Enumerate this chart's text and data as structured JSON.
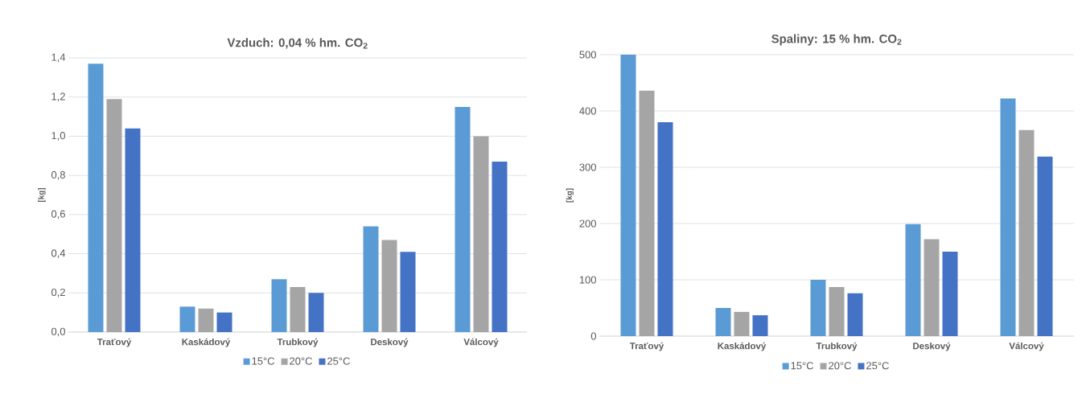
{
  "chart_data": [
    {
      "type": "bar",
      "title": "Vzduch: 0,04 % hm. CO$_{2}$",
      "ylabel": "[kg]",
      "categories": [
        "Traťový",
        "Kaskádový",
        "Trubkový",
        "Deskový",
        "Válcový"
      ],
      "series": [
        {
          "name": "15°C",
          "color": "#5b9bd5",
          "values": [
            1.37,
            0.13,
            0.27,
            0.54,
            1.15
          ]
        },
        {
          "name": "20°C",
          "color": "#a5a5a5",
          "values": [
            1.19,
            0.12,
            0.23,
            0.47,
            1.0
          ]
        },
        {
          "name": "25°C",
          "color": "#4472c4",
          "values": [
            1.04,
            0.1,
            0.2,
            0.41,
            0.87
          ]
        }
      ],
      "ylim": [
        0,
        1.4
      ],
      "yticks": [
        {
          "value": 0,
          "label": "0,0"
        },
        {
          "value": 0.2,
          "label": "0,2"
        },
        {
          "value": 0.4,
          "label": "0,4"
        },
        {
          "value": 0.6,
          "label": "0,6"
        },
        {
          "value": 0.8,
          "label": "0,8"
        },
        {
          "value": 1.0,
          "label": "1,0"
        },
        {
          "value": 1.2,
          "label": "1,2"
        },
        {
          "value": 1.4,
          "label": "1,4"
        }
      ],
      "grid": "y",
      "legend": "bottom"
    },
    {
      "type": "bar",
      "title": "Spaliny: 15 % hm. CO$_{2}$",
      "ylabel": "[kg]",
      "categories": [
        "Traťový",
        "Kaskádový",
        "Trubkový",
        "Deskový",
        "Válcový"
      ],
      "series": [
        {
          "name": "15°C",
          "color": "#5b9bd5",
          "values": [
            500,
            50,
            100,
            199,
            422
          ]
        },
        {
          "name": "20°C",
          "color": "#a5a5a5",
          "values": [
            436,
            43,
            87,
            172,
            366
          ]
        },
        {
          "name": "25°C",
          "color": "#4472c4",
          "values": [
            380,
            37,
            76,
            150,
            319
          ]
        }
      ],
      "ylim": [
        0,
        500
      ],
      "yticks": [
        0,
        100,
        200,
        300,
        400,
        500
      ],
      "grid": "y",
      "legend": "bottom"
    }
  ]
}
